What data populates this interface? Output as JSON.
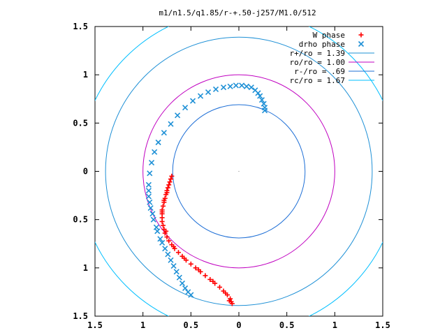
{
  "chart_data": {
    "type": "scatter",
    "title": "m1/n1.5/q1.85/r-+.50-j257/M1.0/512",
    "xlim": [
      -1.5,
      1.5
    ],
    "ylim": [
      -1.5,
      1.5
    ],
    "x_ticks": [
      -1.5,
      -1,
      -0.5,
      0,
      0.5,
      1,
      1.5
    ],
    "y_ticks": [
      -1.5,
      -1,
      -0.5,
      0,
      0.5,
      1,
      1.5
    ],
    "x_tick_labels": [
      "1.5",
      "1",
      "0.5",
      "0",
      "0.5",
      "1",
      "1.5"
    ],
    "y_tick_labels": [
      "1.5",
      "1",
      "0.5",
      "0",
      "0.5",
      "1",
      "1.5"
    ],
    "grid": false,
    "legend_position": "top-right",
    "series": [
      {
        "name": "W phase",
        "kind": "points",
        "marker": "plus",
        "color": "#ff0000",
        "points": [
          [
            -0.7,
            -0.05
          ],
          [
            -0.71,
            -0.08
          ],
          [
            -0.72,
            -0.11
          ],
          [
            -0.73,
            -0.14
          ],
          [
            -0.74,
            -0.17
          ],
          [
            -0.75,
            -0.2
          ],
          [
            -0.76,
            -0.24
          ],
          [
            -0.77,
            -0.28
          ],
          [
            -0.78,
            -0.32
          ],
          [
            -0.79,
            -0.36
          ],
          [
            -0.8,
            -0.4
          ],
          [
            -0.8,
            -0.44
          ],
          [
            -0.8,
            -0.48
          ],
          [
            -0.8,
            -0.52
          ],
          [
            -0.79,
            -0.56
          ],
          [
            -0.78,
            -0.6
          ],
          [
            -0.77,
            -0.64
          ],
          [
            -0.75,
            -0.68
          ],
          [
            -0.73,
            -0.72
          ],
          [
            -0.7,
            -0.76
          ],
          [
            -0.67,
            -0.8
          ],
          [
            -0.63,
            -0.84
          ],
          [
            -0.59,
            -0.88
          ],
          [
            -0.55,
            -0.92
          ],
          [
            -0.5,
            -0.96
          ],
          [
            -0.45,
            -1.0
          ],
          [
            -0.4,
            -1.04
          ],
          [
            -0.35,
            -1.08
          ],
          [
            -0.3,
            -1.12
          ],
          [
            -0.25,
            -1.16
          ],
          [
            -0.2,
            -1.2
          ],
          [
            -0.16,
            -1.24
          ],
          [
            -0.12,
            -1.28
          ],
          [
            -0.09,
            -1.32
          ],
          [
            -0.08,
            -1.35
          ],
          [
            -0.07,
            -1.37
          ],
          [
            -0.75,
            -0.22
          ],
          [
            -0.78,
            -0.3
          ],
          [
            -0.8,
            -0.42
          ],
          [
            -0.76,
            -0.62
          ],
          [
            -0.68,
            -0.78
          ],
          [
            -0.57,
            -0.9
          ],
          [
            -0.42,
            -1.02
          ],
          [
            -0.27,
            -1.14
          ],
          [
            -0.14,
            -1.26
          ],
          [
            -0.1,
            -1.34
          ]
        ]
      },
      {
        "name": "drho phase",
        "kind": "points",
        "marker": "cross",
        "color": "#1e90d6",
        "points": [
          [
            0.27,
            0.63
          ],
          [
            0.27,
            0.66
          ],
          [
            0.26,
            0.7
          ],
          [
            0.24,
            0.74
          ],
          [
            0.22,
            0.78
          ],
          [
            0.2,
            0.81
          ],
          [
            0.17,
            0.84
          ],
          [
            0.13,
            0.87
          ],
          [
            0.08,
            0.88
          ],
          [
            0.03,
            0.89
          ],
          [
            -0.03,
            0.89
          ],
          [
            -0.09,
            0.88
          ],
          [
            -0.16,
            0.87
          ],
          [
            -0.24,
            0.85
          ],
          [
            -0.32,
            0.82
          ],
          [
            -0.4,
            0.78
          ],
          [
            -0.48,
            0.73
          ],
          [
            -0.56,
            0.66
          ],
          [
            -0.64,
            0.58
          ],
          [
            -0.71,
            0.49
          ],
          [
            -0.78,
            0.4
          ],
          [
            -0.84,
            0.3
          ],
          [
            -0.88,
            0.2
          ],
          [
            -0.91,
            0.09
          ],
          [
            -0.93,
            -0.02
          ],
          [
            -0.94,
            -0.14
          ],
          [
            -0.94,
            -0.26
          ],
          [
            -0.92,
            -0.38
          ],
          [
            -0.89,
            -0.5
          ],
          [
            -0.85,
            -0.62
          ],
          [
            -0.8,
            -0.74
          ],
          [
            -0.74,
            -0.86
          ],
          [
            -0.68,
            -0.98
          ],
          [
            -0.62,
            -1.1
          ],
          [
            -0.56,
            -1.21
          ],
          [
            -0.5,
            -1.28
          ],
          [
            -0.86,
            -0.58
          ],
          [
            -0.82,
            -0.7
          ],
          [
            -0.77,
            -0.8
          ],
          [
            -0.71,
            -0.92
          ],
          [
            -0.65,
            -1.04
          ],
          [
            -0.59,
            -1.16
          ],
          [
            -0.53,
            -1.25
          ],
          [
            -0.9,
            -0.44
          ],
          [
            -0.93,
            -0.32
          ],
          [
            -0.94,
            -0.2
          ]
        ]
      },
      {
        "name": "r+/ro = 1.39",
        "kind": "circle",
        "radius": 1.39,
        "color": "#1e90d6"
      },
      {
        "name": "ro/ro = 1.00",
        "kind": "circle",
        "radius": 1.0,
        "color": "#c000c0"
      },
      {
        "name": "r-/ro = .69",
        "kind": "circle",
        "radius": 0.69,
        "color": "#1e6fd6"
      },
      {
        "name": "rc/ro = 1.67",
        "kind": "circle",
        "radius": 1.67,
        "color": "#00bfff"
      }
    ]
  }
}
